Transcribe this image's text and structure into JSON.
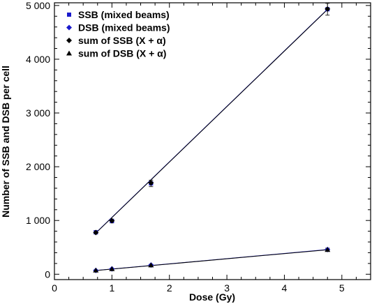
{
  "chart_data": {
    "type": "scatter",
    "xlabel": "Dose (Gy)",
    "ylabel": "Number of SSB and DSB per cell",
    "xlim": [
      0,
      5.5
    ],
    "ylim": [
      -100,
      5050
    ],
    "x_ticks": [
      0,
      1,
      2,
      3,
      4,
      5
    ],
    "x_tick_labels": [
      "0",
      "1",
      "2",
      "3",
      "4",
      "5"
    ],
    "y_ticks": [
      0,
      1000,
      2000,
      3000,
      4000,
      5000
    ],
    "y_tick_labels": [
      "0",
      "1 000",
      "2 000",
      "3 000",
      "4 000",
      "5 000"
    ],
    "legend_position": "top-left",
    "series": [
      {
        "name": "SSB (mixed beams)",
        "marker": "square",
        "color": "#1a1acc",
        "x": [
          0.72,
          1.0,
          1.68,
          4.75
        ],
        "y": [
          780,
          990,
          1690,
          4930
        ],
        "err": [
          30,
          35,
          60,
          110
        ]
      },
      {
        "name": "DSB (mixed beams)",
        "marker": "diamond",
        "color": "#1a1acc",
        "x": [
          0.72,
          1.0,
          1.68,
          4.75
        ],
        "y": [
          70,
          100,
          170,
          460
        ],
        "err": [
          8,
          10,
          15,
          25
        ]
      },
      {
        "name": "sum of SSB (X + α)",
        "marker": "diamond",
        "color": "#000000",
        "x": [
          0.72,
          1.0,
          1.68,
          4.75
        ],
        "y": [
          775,
          995,
          1700,
          4935
        ],
        "err": [
          0,
          0,
          0,
          0
        ]
      },
      {
        "name": "sum of DSB (X + α)",
        "marker": "triangle",
        "color": "#000000",
        "x": [
          0.72,
          1.0,
          1.68,
          4.75
        ],
        "y": [
          72,
          98,
          168,
          455
        ],
        "err": [
          0,
          0,
          0,
          0
        ]
      }
    ],
    "fit_lines": [
      {
        "color": "#1a1acc",
        "x": [
          0.72,
          4.75
        ],
        "y": [
          770,
          4930
        ]
      },
      {
        "color": "#000000",
        "x": [
          0.72,
          4.75
        ],
        "y": [
          765,
          4925
        ]
      },
      {
        "color": "#1a1acc",
        "x": [
          0.72,
          4.75
        ],
        "y": [
          70,
          460
        ]
      },
      {
        "color": "#000000",
        "x": [
          0.72,
          4.75
        ],
        "y": [
          68,
          455
        ]
      }
    ]
  }
}
